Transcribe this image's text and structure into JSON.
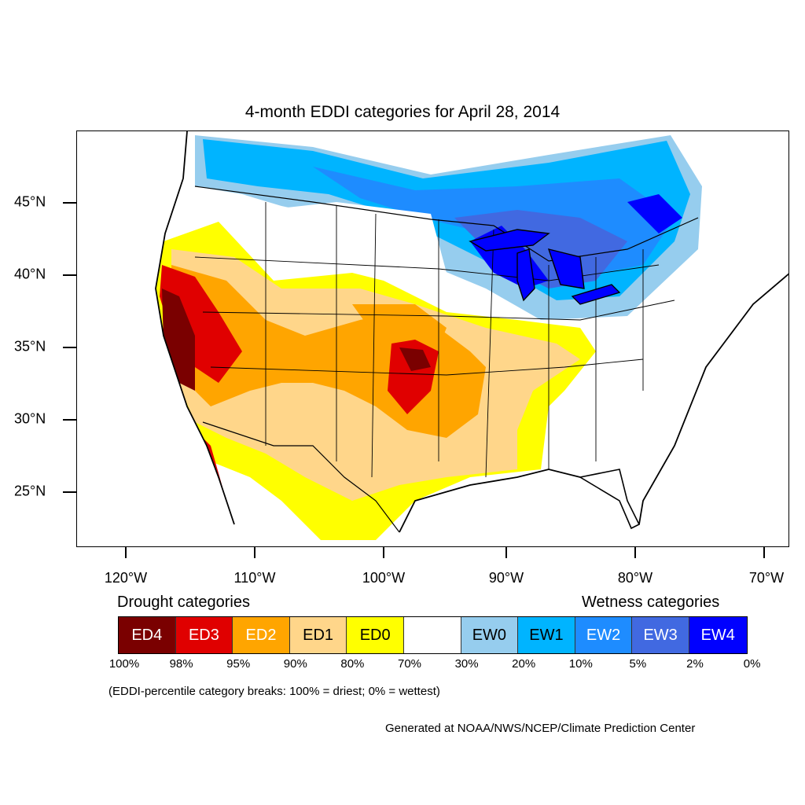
{
  "title": "4-month EDDI categories for April 28, 2014",
  "map": {
    "lat_labels": [
      "45°N",
      "40°N",
      "35°N",
      "30°N",
      "25°N"
    ],
    "lon_labels": [
      "120°W",
      "110°W",
      "100°W",
      "90°W",
      "80°W",
      "70°W"
    ]
  },
  "legend": {
    "drought_title": "Drought categories",
    "wetness_title": "Wetness categories",
    "categories": [
      {
        "label": "ED4",
        "color": "#7a0000",
        "text_color": "#ffffff"
      },
      {
        "label": "ED3",
        "color": "#e00000",
        "text_color": "#ffffff"
      },
      {
        "label": "ED2",
        "color": "#ffa500",
        "text_color": "#ffffff"
      },
      {
        "label": "ED1",
        "color": "#ffd68a",
        "text_color": "#000000"
      },
      {
        "label": "ED0",
        "color": "#ffff00",
        "text_color": "#000000"
      },
      {
        "label": "",
        "color": "#ffffff",
        "text_color": "#000000"
      },
      {
        "label": "EW0",
        "color": "#96cdee",
        "text_color": "#000000"
      },
      {
        "label": "EW1",
        "color": "#00b4ff",
        "text_color": "#000000"
      },
      {
        "label": "EW2",
        "color": "#1e8cff",
        "text_color": "#ffffff"
      },
      {
        "label": "EW3",
        "color": "#4169e1",
        "text_color": "#ffffff"
      },
      {
        "label": "EW4",
        "color": "#0000ff",
        "text_color": "#ffffff"
      }
    ],
    "breaks": [
      "100%",
      "98%",
      "95%",
      "90%",
      "80%",
      "70%",
      "30%",
      "20%",
      "10%",
      "5%",
      "2%",
      "0%"
    ]
  },
  "note": "(EDDI-percentile category breaks: 100% = driest; 0% = wettest)",
  "credit": "Generated at NOAA/NWS/NCEP/Climate Prediction Center"
}
